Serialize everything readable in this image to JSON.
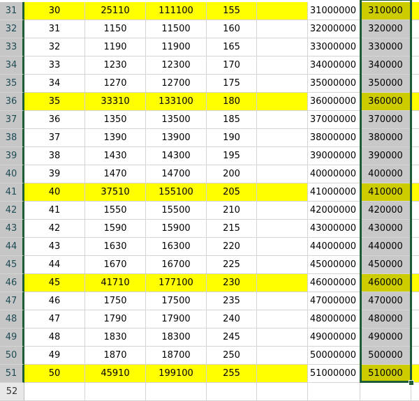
{
  "colors": {
    "highlight": "#ffff00",
    "selection_border": "#1e5c36",
    "selected_highlight": "#cccc00",
    "selected_cell": "#c8c8c8"
  },
  "selected_column": "G",
  "rows": [
    {
      "n": "30",
      "a": "30",
      "b": "25110",
      "c": "111100",
      "d": "155",
      "f": "31000000",
      "g": "310000",
      "hl": true,
      "hdr": "31"
    },
    {
      "a": "31",
      "b": "1150",
      "c": "11500",
      "d": "160",
      "f": "32000000",
      "g": "320000",
      "hl": false,
      "hdr": "32"
    },
    {
      "a": "32",
      "b": "1190",
      "c": "11900",
      "d": "165",
      "f": "33000000",
      "g": "330000",
      "hl": false,
      "hdr": "33"
    },
    {
      "a": "33",
      "b": "1230",
      "c": "12300",
      "d": "170",
      "f": "34000000",
      "g": "340000",
      "hl": false,
      "hdr": "34"
    },
    {
      "a": "34",
      "b": "1270",
      "c": "12700",
      "d": "175",
      "f": "35000000",
      "g": "350000",
      "hl": false,
      "hdr": "35"
    },
    {
      "a": "35",
      "b": "33310",
      "c": "133100",
      "d": "180",
      "f": "36000000",
      "g": "360000",
      "hl": true,
      "hdr": "36"
    },
    {
      "a": "36",
      "b": "1350",
      "c": "13500",
      "d": "185",
      "f": "37000000",
      "g": "370000",
      "hl": false,
      "hdr": "37"
    },
    {
      "a": "37",
      "b": "1390",
      "c": "13900",
      "d": "190",
      "f": "38000000",
      "g": "380000",
      "hl": false,
      "hdr": "38"
    },
    {
      "a": "38",
      "b": "1430",
      "c": "14300",
      "d": "195",
      "f": "39000000",
      "g": "390000",
      "hl": false,
      "hdr": "39"
    },
    {
      "a": "39",
      "b": "1470",
      "c": "14700",
      "d": "200",
      "f": "40000000",
      "g": "400000",
      "hl": false,
      "hdr": "40"
    },
    {
      "a": "40",
      "b": "37510",
      "c": "155100",
      "d": "205",
      "f": "41000000",
      "g": "410000",
      "hl": true,
      "hdr": "41"
    },
    {
      "a": "41",
      "b": "1550",
      "c": "15500",
      "d": "210",
      "f": "42000000",
      "g": "420000",
      "hl": false,
      "hdr": "42"
    },
    {
      "a": "42",
      "b": "1590",
      "c": "15900",
      "d": "215",
      "f": "43000000",
      "g": "430000",
      "hl": false,
      "hdr": "43"
    },
    {
      "a": "43",
      "b": "1630",
      "c": "16300",
      "d": "220",
      "f": "44000000",
      "g": "440000",
      "hl": false,
      "hdr": "44"
    },
    {
      "a": "44",
      "b": "1670",
      "c": "16700",
      "d": "225",
      "f": "45000000",
      "g": "450000",
      "hl": false,
      "hdr": "45"
    },
    {
      "a": "45",
      "b": "41710",
      "c": "177100",
      "d": "230",
      "f": "46000000",
      "g": "460000",
      "hl": true,
      "hdr": "46"
    },
    {
      "a": "46",
      "b": "1750",
      "c": "17500",
      "d": "235",
      "f": "47000000",
      "g": "470000",
      "hl": false,
      "hdr": "47"
    },
    {
      "a": "47",
      "b": "1790",
      "c": "17900",
      "d": "240",
      "f": "48000000",
      "g": "480000",
      "hl": false,
      "hdr": "48"
    },
    {
      "a": "48",
      "b": "1830",
      "c": "18300",
      "d": "245",
      "f": "49000000",
      "g": "490000",
      "hl": false,
      "hdr": "49"
    },
    {
      "a": "49",
      "b": "1870",
      "c": "18700",
      "d": "250",
      "f": "50000000",
      "g": "500000",
      "hl": false,
      "hdr": "50"
    },
    {
      "a": "50",
      "b": "45910",
      "c": "199100",
      "d": "255",
      "f": "51000000",
      "g": "510000",
      "hl": true,
      "hdr": "51"
    },
    {
      "a": "",
      "b": "",
      "c": "",
      "d": "",
      "f": "",
      "g": "",
      "hl": false,
      "hdr": "52",
      "empty": true
    }
  ]
}
